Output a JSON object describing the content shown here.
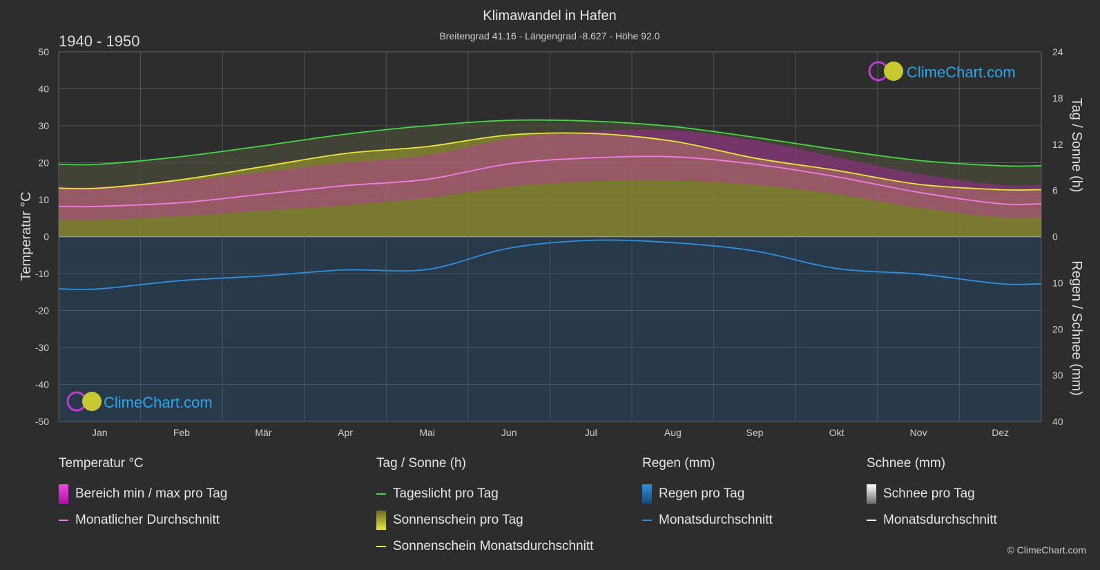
{
  "header": {
    "title": "Klimawandel in Hafen",
    "subtitle": "Breitengrad 41.16 - Längengrad -8.627 - Höhe 92.0",
    "period": "1940 - 1950"
  },
  "brand": {
    "logo_text": "ClimeChart.com",
    "copyright": "© ClimeChart.com"
  },
  "colors": {
    "background": "#2d2d2d",
    "daylight": "#44d844",
    "sunshine_avg": "#e8e83a",
    "sunshine_fill": "#a8a82e",
    "temp_avg": "#f07ee6",
    "temp_range": "#d020c8",
    "rain_avg": "#2f8fe0",
    "rain_fill": "#1d5f94",
    "snow_avg": "#ffffff",
    "logo_text": "#2aa7f0"
  },
  "chart_data": {
    "type": "line",
    "title": "Klimawandel in Hafen",
    "categories": [
      "Jan",
      "Feb",
      "Mär",
      "Apr",
      "Mai",
      "Jun",
      "Jul",
      "Aug",
      "Sep",
      "Okt",
      "Nov",
      "Dez"
    ],
    "axes": {
      "left": {
        "label": "Temperatur °C",
        "range": [
          -50,
          50
        ],
        "ticks": [
          50,
          40,
          30,
          20,
          10,
          0,
          -10,
          -20,
          -30,
          -40,
          -50
        ]
      },
      "right_top": {
        "label": "Tag / Sonne (h)",
        "range": [
          0,
          24
        ],
        "ticks": [
          24,
          18,
          12,
          6,
          0
        ]
      },
      "right_bottom": {
        "label": "Regen / Schnee (mm)",
        "range": [
          0,
          40
        ],
        "ticks": [
          0,
          10,
          20,
          30,
          40
        ]
      }
    },
    "grid": true,
    "series": [
      {
        "name": "Tageslicht pro Tag",
        "axis": "hours",
        "values": [
          9.4,
          10.4,
          11.8,
          13.3,
          14.4,
          15.1,
          15.0,
          14.3,
          12.9,
          11.3,
          9.9,
          9.2
        ]
      },
      {
        "name": "Sonnenschein Monatsdurchschnitt",
        "axis": "hours",
        "values": [
          6.3,
          7.4,
          9.1,
          10.8,
          11.7,
          13.2,
          13.4,
          12.4,
          10.2,
          8.6,
          6.8,
          6.1
        ]
      },
      {
        "name": "Monatlicher Durchschnitt",
        "axis": "temp",
        "values": [
          8.2,
          9.2,
          11.5,
          13.8,
          15.5,
          19.7,
          21.3,
          21.6,
          19.6,
          16.2,
          12.0,
          8.9
        ]
      },
      {
        "name": "Regen Monatsdurchschnitt",
        "axis": "precip",
        "values": [
          11.3,
          9.5,
          8.5,
          7.2,
          7.1,
          2.5,
          0.8,
          1.3,
          3.1,
          6.9,
          8.1,
          10.2
        ]
      },
      {
        "name": "Schnee Monatsdurchschnitt",
        "axis": "precip",
        "values": [
          0,
          0,
          0,
          0,
          0,
          0,
          0,
          0,
          0,
          0,
          0,
          0
        ]
      }
    ],
    "temp_daily_range": {
      "min": [
        4.5,
        5.5,
        7.0,
        8.5,
        10.5,
        13.5,
        15.0,
        15.2,
        14.0,
        11.5,
        7.8,
        5.2
      ],
      "max": [
        13.5,
        15.0,
        17.5,
        20.0,
        22.0,
        26.5,
        28.5,
        28.8,
        26.0,
        21.5,
        17.0,
        14.0
      ]
    }
  },
  "legend": {
    "temp": {
      "heading": "Temperatur °C",
      "range_label": "Bereich min / max pro Tag",
      "avg_label": "Monatlicher Durchschnitt"
    },
    "sun": {
      "heading": "Tag / Sonne (h)",
      "daylight_label": "Tageslicht pro Tag",
      "sunshine_label": "Sonnenschein pro Tag",
      "sunshine_avg_label": "Sonnenschein Monatsdurchschnitt"
    },
    "rain": {
      "heading": "Regen (mm)",
      "rain_label": "Regen pro Tag",
      "avg_label": "Monatsdurchschnitt"
    },
    "snow": {
      "heading": "Schnee (mm)",
      "snow_label": "Schnee pro Tag",
      "avg_label": "Monatsdurchschnitt"
    }
  }
}
